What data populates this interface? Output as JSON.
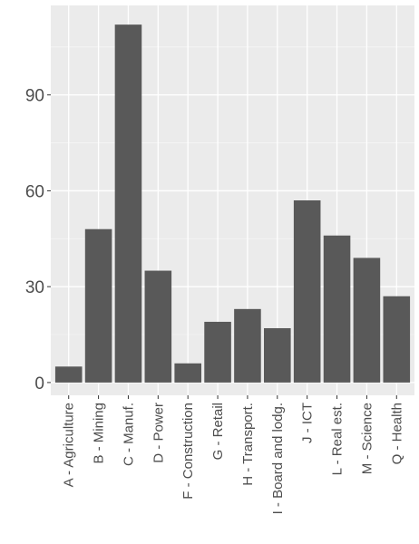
{
  "chart_data": {
    "type": "bar",
    "title": "",
    "xlabel": "",
    "ylabel": "",
    "categories": [
      "A - Agriculture",
      "B - Mining",
      "C - Manuf.",
      "D - Power",
      "F - Construction",
      "G - Retail",
      "H - Transport.",
      "I - Board and lodg.",
      "J - ICT",
      "L - Real est.",
      "M - Science",
      "Q - Health"
    ],
    "values": [
      5,
      48,
      112,
      35,
      6,
      19,
      23,
      17,
      57,
      46,
      39,
      27
    ],
    "ylim": [
      -4,
      118
    ],
    "yticks": [
      0,
      30,
      60,
      90
    ],
    "grid": true,
    "legend": "none",
    "colors": {
      "bar": "#595959",
      "panel": "#ebebeb",
      "grid_major": "#ffffff",
      "grid_minor": "#f5f5f5",
      "tick_text": "#4d4d4d"
    }
  }
}
